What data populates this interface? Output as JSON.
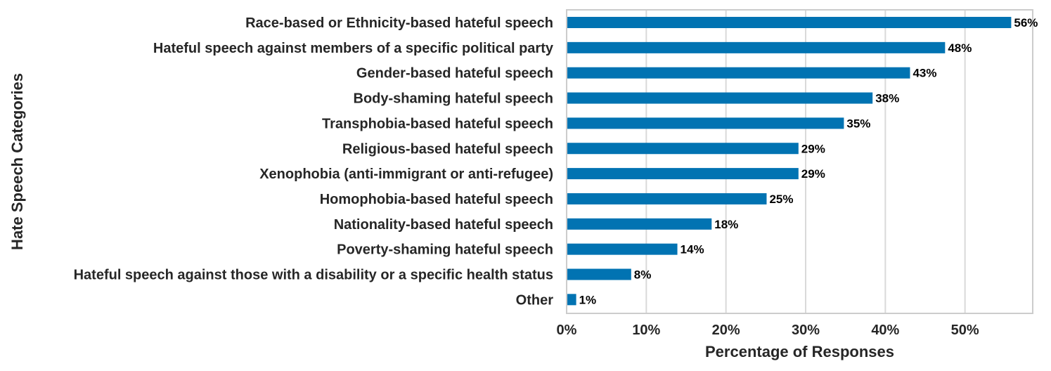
{
  "colors": {
    "bar": "#0173b2",
    "grid": "#d9d9d9",
    "frame": "#cccccc",
    "text": "#262626"
  },
  "chart_data": {
    "type": "bar",
    "orientation": "horizontal",
    "xlabel": "Percentage of Responses",
    "ylabel": "Hate Speech Categories",
    "xlim": [
      0,
      58.5
    ],
    "xticks": [
      0,
      10,
      20,
      30,
      40,
      50
    ],
    "xtick_labels": [
      "0%",
      "10%",
      "20%",
      "30%",
      "40%",
      "50%"
    ],
    "grid": true,
    "categories": [
      "Race-based or Ethnicity-based hateful speech",
      "Hateful speech against members of a specific political party",
      "Gender-based hateful speech",
      "Body-shaming hateful speech",
      "Transphobia-based hateful speech",
      "Religious-based hateful speech",
      "Xenophobia (anti-immigrant or anti-refugee)",
      "Homophobia-based hateful speech",
      "Nationality-based hateful speech",
      "Poverty-shaming hateful speech",
      "Hateful speech against those with a disability or a specific health status",
      "Other"
    ],
    "values": [
      55.8,
      47.5,
      43.1,
      38.4,
      34.8,
      29.1,
      29.1,
      25.1,
      18.2,
      13.9,
      8.1,
      1.2
    ],
    "value_labels": [
      "56%",
      "48%",
      "43%",
      "38%",
      "35%",
      "29%",
      "29%",
      "25%",
      "18%",
      "14%",
      "8%",
      "1%"
    ]
  }
}
